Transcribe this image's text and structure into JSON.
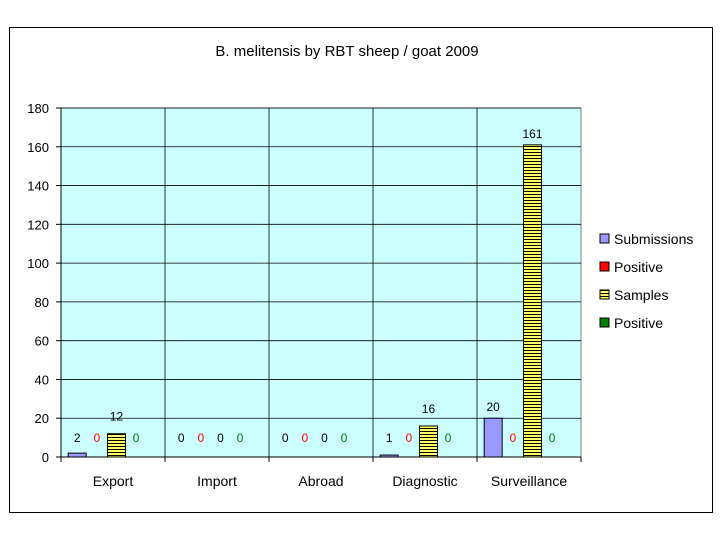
{
  "chart_data": {
    "type": "bar",
    "title": "B. melitensis by RBT sheep / goat 2009",
    "xlabel": "",
    "ylabel": "",
    "ylim": [
      0,
      180
    ],
    "yticks": [
      0,
      20,
      40,
      60,
      80,
      100,
      120,
      140,
      160,
      180
    ],
    "grid": true,
    "legend_position": "right",
    "plot_background": "#ccffff",
    "categories": [
      "Export",
      "Import",
      "Abroad",
      "Diagnostic",
      "Surveillance"
    ],
    "series": [
      {
        "name": "Submissions",
        "values": [
          2,
          0,
          0,
          1,
          20
        ],
        "color": "#9999ff",
        "label_color": "#000000",
        "pattern": "solid"
      },
      {
        "name": "Positive",
        "values": [
          0,
          0,
          0,
          0,
          0
        ],
        "color": "#ff0000",
        "label_color": "#ff0000",
        "pattern": "solid"
      },
      {
        "name": "Samples",
        "values": [
          12,
          0,
          0,
          16,
          161
        ],
        "color": "#ffff66",
        "label_color": "#000000",
        "pattern": "striped"
      },
      {
        "name": "Positive",
        "values": [
          0,
          0,
          0,
          0,
          0
        ],
        "color": "#008000",
        "label_color": "#008000",
        "pattern": "solid"
      }
    ]
  }
}
